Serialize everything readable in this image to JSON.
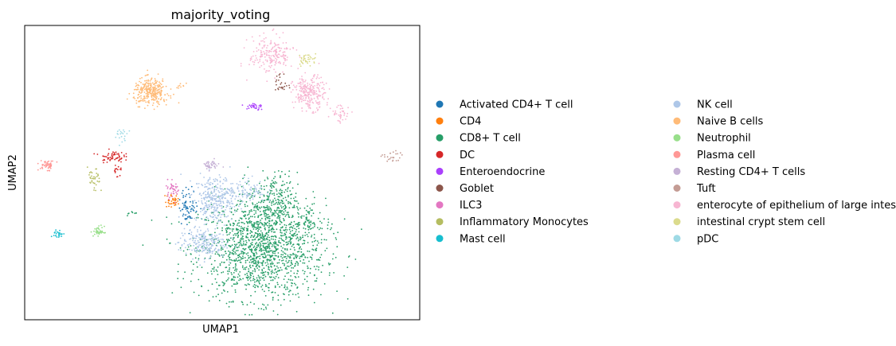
{
  "chart_data": {
    "type": "scatter",
    "title": "majority_voting",
    "xlabel": "UMAP1",
    "ylabel": "UMAP2",
    "xlim": [
      0,
      100
    ],
    "ylim": [
      0,
      100
    ],
    "grid": false,
    "ticks": false,
    "legend_placement": "right, two columns",
    "series": [
      {
        "name": "Activated CD4+ T cell",
        "color": "#1f77b4",
        "clusters": [
          {
            "cx": 41.5,
            "cy": 38.5,
            "sx": 1.2,
            "sy": 3.0,
            "n": 70
          }
        ]
      },
      {
        "name": "CD4",
        "color": "#ff7f0e",
        "clusters": [
          {
            "cx": 37.5,
            "cy": 40.5,
            "sx": 1.0,
            "sy": 1.2,
            "n": 40
          }
        ]
      },
      {
        "name": "CD8+ T cell",
        "color": "#279e68",
        "clusters": [
          {
            "cx": 60.0,
            "cy": 24.0,
            "sx": 8.0,
            "sy": 8.5,
            "n": 1500
          },
          {
            "cx": 63.0,
            "cy": 40.0,
            "sx": 3.0,
            "sy": 5.0,
            "n": 250
          },
          {
            "cx": 72.0,
            "cy": 32.5,
            "sx": 2.2,
            "sy": 1.5,
            "n": 40
          },
          {
            "cx": 27.5,
            "cy": 36.0,
            "sx": 0.8,
            "sy": 0.4,
            "n": 8
          }
        ]
      },
      {
        "name": "DC",
        "color": "#d62728",
        "clusters": [
          {
            "cx": 22.0,
            "cy": 55.5,
            "sx": 1.5,
            "sy": 1.0,
            "n": 60
          },
          {
            "cx": 23.5,
            "cy": 50.5,
            "sx": 0.6,
            "sy": 1.0,
            "n": 15
          }
        ]
      },
      {
        "name": "Enteroendocrine",
        "color": "#aa40fc",
        "clusters": [
          {
            "cx": 58.0,
            "cy": 72.5,
            "sx": 1.2,
            "sy": 0.8,
            "n": 30
          }
        ]
      },
      {
        "name": "Goblet",
        "color": "#8c564b",
        "clusters": [
          {
            "cx": 65.0,
            "cy": 80.0,
            "sx": 0.8,
            "sy": 2.0,
            "n": 25
          }
        ]
      },
      {
        "name": "ILC3",
        "color": "#e377c2",
        "clusters": [
          {
            "cx": 37.5,
            "cy": 44.5,
            "sx": 0.9,
            "sy": 1.5,
            "n": 40
          }
        ]
      },
      {
        "name": "Inflammatory Monocytes",
        "color": "#b5bd61",
        "clusters": [
          {
            "cx": 17.5,
            "cy": 47.0,
            "sx": 0.8,
            "sy": 2.2,
            "n": 35
          }
        ]
      },
      {
        "name": "Mast cell",
        "color": "#17becf",
        "clusters": [
          {
            "cx": 8.5,
            "cy": 29.0,
            "sx": 0.6,
            "sy": 0.8,
            "n": 25
          }
        ]
      },
      {
        "name": "NK cell",
        "color": "#aec7e8",
        "clusters": [
          {
            "cx": 48.0,
            "cy": 41.0,
            "sx": 2.5,
            "sy": 4.0,
            "n": 300
          },
          {
            "cx": 45.0,
            "cy": 26.0,
            "sx": 3.0,
            "sy": 2.5,
            "n": 220
          },
          {
            "cx": 56.0,
            "cy": 44.0,
            "sx": 2.5,
            "sy": 2.0,
            "n": 100
          }
        ]
      },
      {
        "name": "Naive B cells",
        "color": "#ffbb78",
        "clusters": [
          {
            "cx": 32.0,
            "cy": 77.5,
            "sx": 2.2,
            "sy": 2.2,
            "n": 300
          },
          {
            "cx": 39.5,
            "cy": 79.5,
            "sx": 0.6,
            "sy": 0.4,
            "n": 8
          }
        ]
      },
      {
        "name": "Neutrophil",
        "color": "#98df8a",
        "clusters": [
          {
            "cx": 18.8,
            "cy": 30.0,
            "sx": 0.7,
            "sy": 0.9,
            "n": 40
          }
        ]
      },
      {
        "name": "Plasma cell",
        "color": "#ff9896",
        "clusters": [
          {
            "cx": 5.8,
            "cy": 52.5,
            "sx": 1.0,
            "sy": 0.8,
            "n": 50
          }
        ]
      },
      {
        "name": "Resting CD4+ T cells",
        "color": "#c5b0d5",
        "clusters": [
          {
            "cx": 47.0,
            "cy": 52.5,
            "sx": 1.2,
            "sy": 0.8,
            "n": 40
          }
        ]
      },
      {
        "name": "Tuft",
        "color": "#c49c94",
        "clusters": [
          {
            "cx": 93.0,
            "cy": 55.0,
            "sx": 1.2,
            "sy": 1.2,
            "n": 25
          }
        ]
      },
      {
        "name": "enterocyte of epithelium of large intestine",
        "color": "#f7b6d2",
        "clusters": [
          {
            "cx": 62.5,
            "cy": 90.0,
            "sx": 2.8,
            "sy": 3.2,
            "n": 200
          },
          {
            "cx": 72.0,
            "cy": 77.0,
            "sx": 2.0,
            "sy": 2.8,
            "n": 250
          },
          {
            "cx": 80.0,
            "cy": 70.0,
            "sx": 1.2,
            "sy": 1.5,
            "n": 40
          }
        ]
      },
      {
        "name": "intestinal crypt stem cell",
        "color": "#dbdb8d",
        "clusters": [
          {
            "cx": 71.5,
            "cy": 88.5,
            "sx": 1.2,
            "sy": 1.0,
            "n": 40
          }
        ]
      },
      {
        "name": "pDC",
        "color": "#9edae5",
        "clusters": [
          {
            "cx": 24.5,
            "cy": 62.5,
            "sx": 0.8,
            "sy": 1.2,
            "n": 20
          }
        ]
      }
    ]
  }
}
